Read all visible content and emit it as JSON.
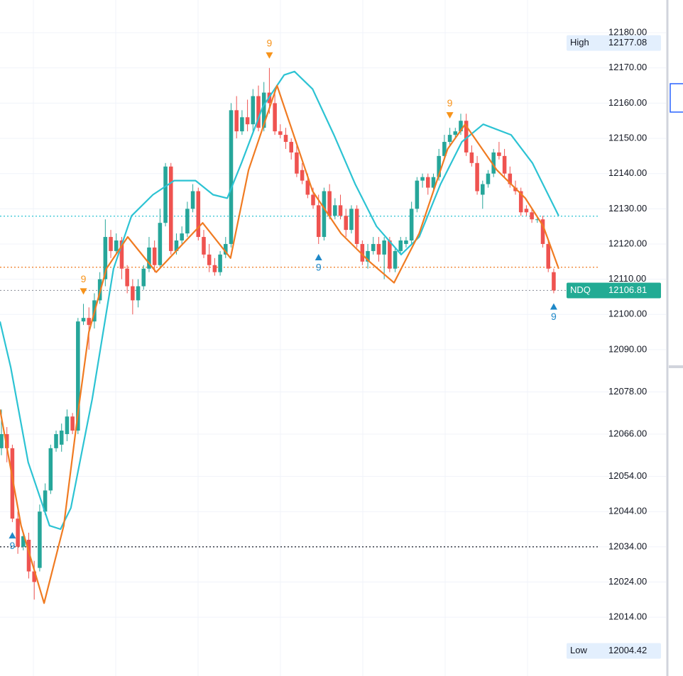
{
  "chart_data": {
    "type": "candlestick",
    "up_color": "#26a69a",
    "down_color": "#ef5350",
    "xlim": [
      -0.26,
      108.8
    ],
    "ylim": [
      11997.3,
      12189.3
    ],
    "yticks": [
      {
        "value": 12180,
        "label": "12180.00"
      },
      {
        "value": 12170,
        "label": "12170.00"
      },
      {
        "value": 12160,
        "label": "12160.00"
      },
      {
        "value": 12150,
        "label": "12150.00"
      },
      {
        "value": 12140,
        "label": "12140.00"
      },
      {
        "value": 12130,
        "label": "12130.00"
      },
      {
        "value": 12120,
        "label": "12120.00"
      },
      {
        "value": 12110,
        "label": "12110.00"
      },
      {
        "value": 12100,
        "label": "12100.00"
      },
      {
        "value": 12090,
        "label": "12090.00"
      },
      {
        "value": 12078,
        "label": "12078.00"
      },
      {
        "value": 12066,
        "label": "12066.00"
      },
      {
        "value": 12054,
        "label": "12054.00"
      },
      {
        "value": 12044,
        "label": "12044.00"
      },
      {
        "value": 12034,
        "label": "12034.00"
      },
      {
        "value": 12024,
        "label": "12024.00"
      },
      {
        "value": 12014,
        "label": "12014.00"
      }
    ],
    "grid": true,
    "ohlc": [
      [
        12062,
        12073,
        12060,
        12066
      ],
      [
        12066,
        12068,
        12058,
        12062
      ],
      [
        12062,
        12063,
        12041,
        12042
      ],
      [
        12042,
        12044,
        12032,
        12034
      ],
      [
        12034,
        12038,
        12033,
        12037
      ],
      [
        12036,
        12038,
        12025,
        12027
      ],
      [
        12027,
        12030,
        12019,
        12024
      ],
      [
        12028,
        12046,
        12027,
        12044
      ],
      [
        12044,
        12052,
        12043,
        12050
      ],
      [
        12050,
        12063,
        12049,
        12062
      ],
      [
        12062,
        12067,
        12061,
        12066
      ],
      [
        12063,
        12069,
        12061,
        12067
      ],
      [
        12066,
        12073,
        12064,
        12071
      ],
      [
        12071,
        12072,
        12066,
        12067
      ],
      [
        12067,
        12099,
        12066,
        12098
      ],
      [
        12098,
        12103,
        12097,
        12099
      ],
      [
        12099,
        12102,
        12090,
        12097
      ],
      [
        12098,
        12106,
        12096,
        12104
      ],
      [
        12104,
        12112,
        12103,
        12110
      ],
      [
        12110,
        12127,
        12108,
        12122
      ],
      [
        12122,
        12124,
        12116,
        12118
      ],
      [
        12118,
        12123,
        12117,
        12121
      ],
      [
        12121,
        12122,
        12110,
        12113
      ],
      [
        12113,
        12114,
        12106,
        12108
      ],
      [
        12108,
        12110,
        12100,
        12104
      ],
      [
        12104,
        12110,
        12102,
        12108
      ],
      [
        12108,
        12114,
        12107,
        12113
      ],
      [
        12113,
        12122,
        12112,
        12119
      ],
      [
        12119,
        12121,
        12112,
        12114
      ],
      [
        12114,
        12130,
        12113,
        12126
      ],
      [
        12126,
        12143,
        12125,
        12142
      ],
      [
        12142,
        12143,
        12117,
        12118
      ],
      [
        12118,
        12123,
        12117,
        12121
      ],
      [
        12121,
        12125,
        12120,
        12123
      ],
      [
        12123,
        12132,
        12122,
        12130
      ],
      [
        12130,
        12137,
        12129,
        12135
      ],
      [
        12135,
        12136,
        12121,
        12122
      ],
      [
        12122,
        12124,
        12116,
        12117
      ],
      [
        12117,
        12120,
        12112,
        12114
      ],
      [
        12114,
        12116,
        12111,
        12112
      ],
      [
        12112,
        12118,
        12111,
        12117
      ],
      [
        12117,
        12122,
        12116,
        12120
      ],
      [
        12120,
        12160,
        12119,
        12158
      ],
      [
        12158,
        12162,
        12150,
        12152
      ],
      [
        12152,
        12158,
        12151,
        12156
      ],
      [
        12156,
        12161,
        12152,
        12154
      ],
      [
        12154,
        12164,
        12152,
        12162
      ],
      [
        12162,
        12165,
        12152,
        12153
      ],
      [
        12153,
        12166,
        12152,
        12163
      ],
      [
        12163,
        12170,
        12157,
        12160
      ],
      [
        12160,
        12163,
        12151,
        12152
      ],
      [
        12152,
        12154,
        12150,
        12151
      ],
      [
        12151,
        12153,
        12147,
        12149
      ],
      [
        12149,
        12150,
        12144,
        12146
      ],
      [
        12146,
        12148,
        12139,
        12140
      ],
      [
        12141,
        12143,
        12137,
        12138
      ],
      [
        12138,
        12140,
        12133,
        12134
      ],
      [
        12134,
        12136,
        12130,
        12131
      ],
      [
        12131,
        12134,
        12120,
        12122
      ],
      [
        12122,
        12136,
        12121,
        12135
      ],
      [
        12135,
        12137,
        12127,
        12128
      ],
      [
        12128,
        12133,
        12127,
        12131
      ],
      [
        12131,
        12134,
        12127,
        12128
      ],
      [
        12128,
        12130,
        12122,
        12124
      ],
      [
        12124,
        12131,
        12123,
        12130
      ],
      [
        12130,
        12131,
        12119,
        12120
      ],
      [
        12120,
        12121,
        12114,
        12115
      ],
      [
        12115,
        12120,
        12113,
        12118
      ],
      [
        12118,
        12122,
        12117,
        12120
      ],
      [
        12120,
        12122,
        12115,
        12117
      ],
      [
        12117,
        12122,
        12110,
        12121
      ],
      [
        12121,
        12122,
        12112,
        12113
      ],
      [
        12113,
        12119,
        12112,
        12118
      ],
      [
        12118,
        12122,
        12117,
        12121
      ],
      [
        12120,
        12122,
        12119,
        12121
      ],
      [
        12121,
        12132,
        12120,
        12130
      ],
      [
        12130,
        12139,
        12129,
        12138
      ],
      [
        12138,
        12140,
        12136,
        12139
      ],
      [
        12139,
        12140,
        12134,
        12136
      ],
      [
        12136,
        12140,
        12135,
        12139
      ],
      [
        12139,
        12147,
        12138,
        12145
      ],
      [
        12145,
        12151,
        12144,
        12149
      ],
      [
        12149,
        12153,
        12148,
        12151
      ],
      [
        12151,
        12153,
        12150,
        12152
      ],
      [
        12152,
        12157,
        12151,
        12155
      ],
      [
        12155,
        12157,
        12145,
        12146
      ],
      [
        12146,
        12148,
        12142,
        12143
      ],
      [
        12143,
        12145,
        12134,
        12135
      ],
      [
        12134,
        12138,
        12130,
        12137
      ],
      [
        12137,
        12141,
        12136,
        12140
      ],
      [
        12140,
        12147,
        12139,
        12146
      ],
      [
        12146,
        12149,
        12144,
        12145
      ],
      [
        12145,
        12147,
        12139,
        12140
      ],
      [
        12140,
        12142,
        12136,
        12137
      ],
      [
        12136,
        12138,
        12134,
        12135
      ],
      [
        12135,
        12136,
        12128,
        12129
      ],
      [
        12130,
        12131,
        12128,
        12129
      ],
      [
        12129,
        12130,
        12126,
        12127
      ],
      [
        12127,
        12128,
        12126,
        12127
      ],
      [
        12127,
        12128,
        12119,
        12120
      ],
      [
        12120,
        12121,
        12112,
        12113
      ],
      [
        12112,
        12113,
        12106,
        12106.81
      ]
    ],
    "lines": [
      {
        "color": "#2cc3d3",
        "x": [
          -0.26,
          1.7,
          4.9,
          8.8,
          10.8,
          12.7,
          16.6,
          20.5,
          23.8,
          27.7,
          31.6,
          35.5,
          38.7,
          41.3,
          43.9,
          47.8,
          51.7,
          53.6,
          56.9,
          60.8,
          64.7,
          68.6,
          73.1,
          76.4,
          80.3,
          84.2,
          88.1,
          93.2,
          97.1,
          101.9
        ],
        "values": [
          12098,
          12085,
          12058,
          12040,
          12039,
          12045,
          12076,
          12113,
          12128,
          12134,
          12138,
          12138,
          12134,
          12133,
          12143,
          12159,
          12168,
          12169,
          12164,
          12151,
          12137,
          12125,
          12117,
          12122,
          12137,
          12149,
          12154,
          12151,
          12143,
          12128
        ]
      },
      {
        "color": "#f07b22",
        "x": [
          -0.26,
          3.6,
          7.8,
          11.4,
          14.0,
          16.0,
          19.2,
          23.1,
          28.3,
          36.8,
          41.9,
          45.2,
          50.4,
          56.9,
          62.1,
          67.3,
          71.8,
          76.4,
          81.6,
          84.8,
          90.6,
          95.8,
          99.1,
          101.9
        ],
        "values": [
          12073,
          12040,
          12018,
          12040,
          12072,
          12095,
          12113,
          12122,
          12112,
          12126,
          12116,
          12141,
          12165,
          12135,
          12123,
          12115,
          12109,
          12123,
          12147,
          12154,
          12141,
          12133,
          12125,
          12113
        ]
      }
    ],
    "hlines": [
      {
        "value": 12127.9,
        "color": "#2cc3d3"
      },
      {
        "value": 12113.4,
        "color": "#f07b22"
      },
      {
        "value": 12106.81,
        "color": "#9598a1"
      },
      {
        "value": 12034,
        "color": "#131722"
      }
    ],
    "signals": [
      {
        "label": "9",
        "index": 15,
        "dir": "down",
        "color": "#f7931a"
      },
      {
        "label": "9",
        "index": 49,
        "dir": "down",
        "color": "#f7931a"
      },
      {
        "label": "9",
        "index": 82,
        "dir": "down",
        "color": "#f7931a"
      },
      {
        "label": "9",
        "index": 2,
        "dir": "up",
        "color": "#1e88c8"
      },
      {
        "label": "9",
        "index": 58,
        "dir": "up",
        "color": "#1e88c8"
      },
      {
        "label": "9",
        "index": 101,
        "dir": "up",
        "color": "#1e88c8"
      }
    ],
    "price_labels": [
      {
        "name": "High",
        "value": 12177.08,
        "style": "light"
      },
      {
        "name": "NDQ",
        "value": 12106.81,
        "style": "solid"
      },
      {
        "name": "Low",
        "value": 12004.42,
        "style": "light"
      }
    ]
  }
}
